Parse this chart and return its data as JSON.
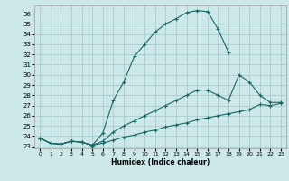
{
  "xlabel": "Humidex (Indice chaleur)",
  "bg_color": "#cce8e8",
  "grid_color": "#aacccc",
  "line_color": "#1a6666",
  "xlim": [
    -0.5,
    23.5
  ],
  "ylim": [
    22.8,
    36.8
  ],
  "yticks": [
    23,
    24,
    25,
    26,
    27,
    28,
    29,
    30,
    31,
    32,
    33,
    34,
    35,
    36
  ],
  "xticks": [
    0,
    1,
    2,
    3,
    4,
    5,
    6,
    7,
    8,
    9,
    10,
    11,
    12,
    13,
    14,
    15,
    16,
    17,
    18,
    19,
    20,
    21,
    22,
    23
  ],
  "lines": [
    {
      "x": [
        0,
        1,
        2,
        3,
        4,
        5,
        6,
        7,
        8,
        9,
        10,
        11,
        12,
        13,
        14,
        15,
        16,
        17,
        18
      ],
      "y": [
        23.8,
        23.3,
        23.2,
        23.5,
        23.4,
        23.1,
        24.3,
        27.5,
        29.3,
        31.8,
        33.0,
        34.2,
        35.0,
        35.5,
        36.1,
        36.3,
        36.2,
        34.5,
        32.2
      ]
    },
    {
      "x": [
        0,
        1,
        2,
        3,
        4,
        5,
        6,
        7,
        8,
        9,
        10,
        11,
        12,
        13,
        14,
        15,
        16,
        17,
        18,
        19,
        20,
        21,
        22,
        23
      ],
      "y": [
        23.8,
        23.3,
        23.2,
        23.5,
        23.4,
        23.1,
        23.5,
        24.4,
        25.0,
        25.5,
        26.0,
        26.5,
        27.0,
        27.5,
        28.0,
        28.5,
        28.5,
        28.0,
        27.5,
        30.0,
        29.3,
        28.0,
        27.3,
        27.3
      ]
    },
    {
      "x": [
        0,
        1,
        2,
        3,
        4,
        5,
        6,
        7,
        8,
        9,
        10,
        11,
        12,
        13,
        14,
        15,
        16,
        17,
        18,
        19,
        20,
        21,
        22,
        23
      ],
      "y": [
        23.8,
        23.3,
        23.2,
        23.5,
        23.4,
        23.1,
        23.3,
        23.6,
        23.9,
        24.1,
        24.4,
        24.6,
        24.9,
        25.1,
        25.3,
        25.6,
        25.8,
        26.0,
        26.2,
        26.4,
        26.6,
        27.1,
        27.0,
        27.2
      ]
    }
  ]
}
